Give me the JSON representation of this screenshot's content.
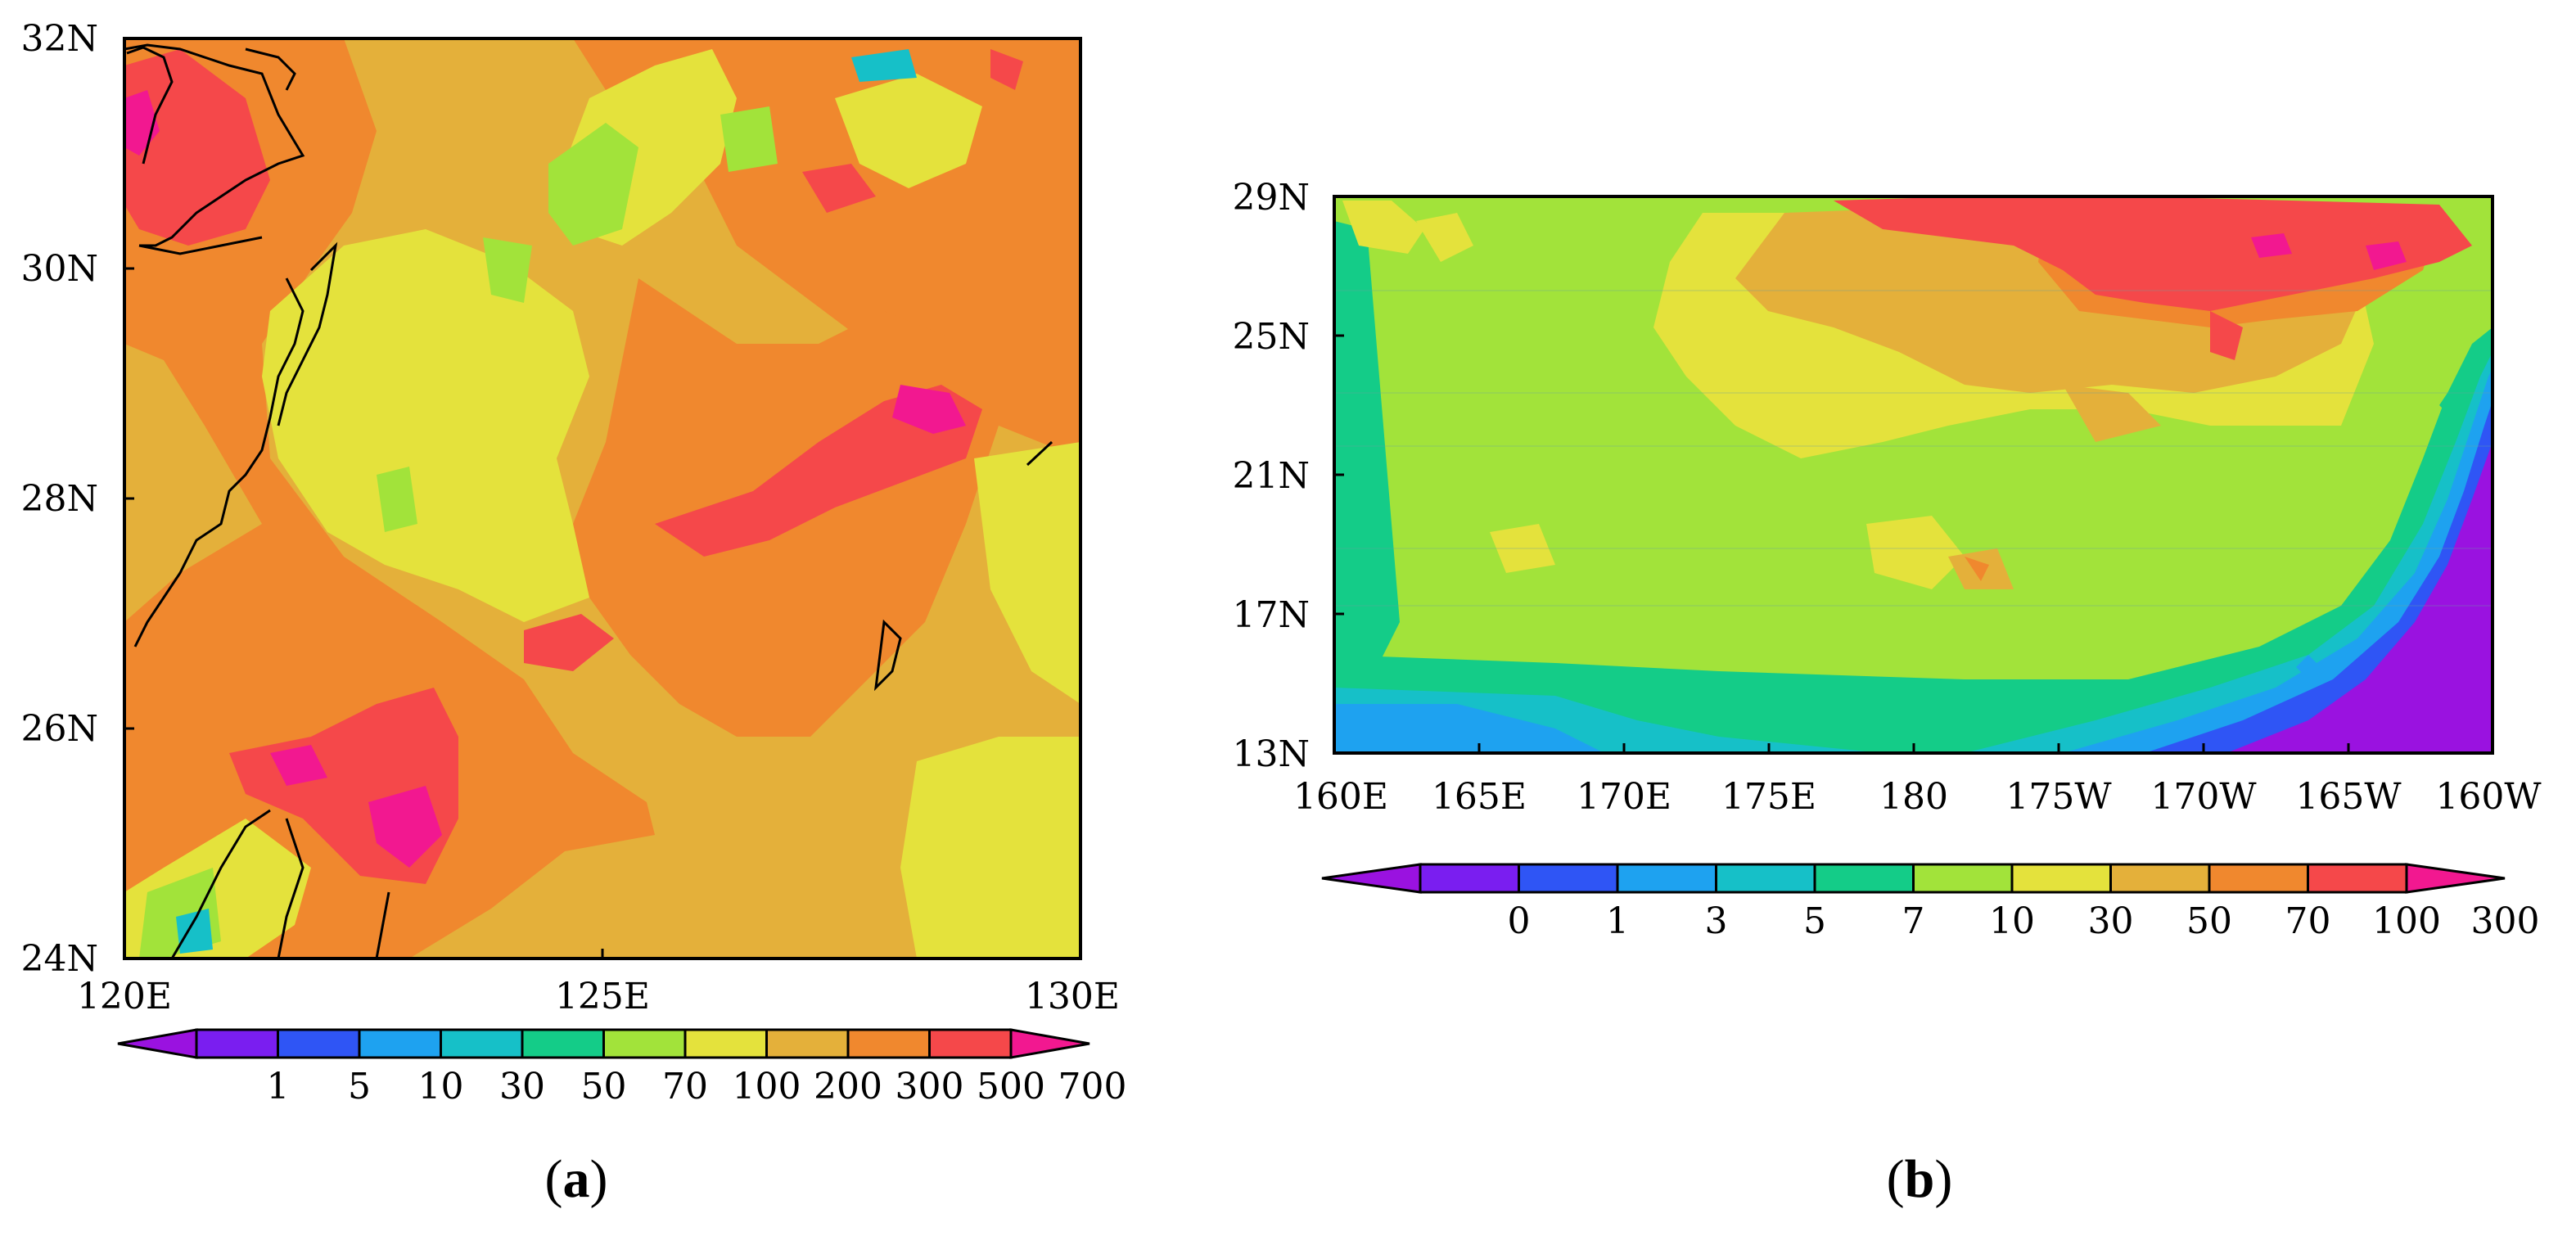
{
  "panel_a": {
    "caption": "(a)",
    "caption_letter": "a",
    "x_ticks": [
      "120E",
      "125E",
      "130E"
    ],
    "y_ticks": [
      "32N",
      "30N",
      "28N",
      "26N",
      "24N"
    ],
    "colorbar_labels": [
      "1",
      "5",
      "10",
      "30",
      "50",
      "70",
      "100",
      "200",
      "300",
      "500",
      "700"
    ],
    "colorbar_colors": [
      "#9a12e0",
      "#7a1ef0",
      "#2f55f5",
      "#1ea2f0",
      "#16c0c8",
      "#14cc88",
      "#a2e33a",
      "#e4e23c",
      "#e4b03a",
      "#f0882e",
      "#f5484a",
      "#f21890"
    ]
  },
  "panel_b": {
    "caption": "(b)",
    "caption_letter": "b",
    "x_ticks": [
      "160E",
      "165E",
      "170E",
      "175E",
      "180",
      "175W",
      "170W",
      "165W",
      "160W"
    ],
    "y_ticks": [
      "29N",
      "25N",
      "21N",
      "17N",
      "13N"
    ],
    "colorbar_labels": [
      "0",
      "1",
      "3",
      "5",
      "7",
      "10",
      "30",
      "50",
      "70",
      "100",
      "300"
    ],
    "colorbar_colors": [
      "#9a12e0",
      "#7a1ef0",
      "#2f55f5",
      "#1ea2f0",
      "#16c0c8",
      "#14cc88",
      "#a2e33a",
      "#e4e23c",
      "#e4b03a",
      "#f0882e",
      "#f5484a",
      "#f21890"
    ]
  }
}
